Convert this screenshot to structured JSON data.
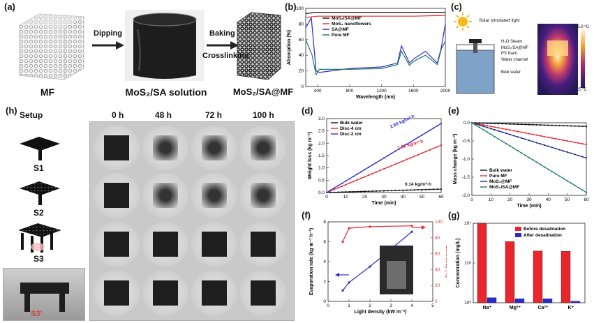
{
  "panel_letters": {
    "a": "(a)",
    "b": "(b)",
    "c": "(c)",
    "d": "(d)",
    "e": "(e)",
    "f": "(f)",
    "g": "(g)",
    "h": "(h)"
  },
  "panel_a": {
    "labels": [
      "MF",
      "MoS₂/SA solution",
      "MoS₂/SA@MF"
    ],
    "arrow1": "Dipping",
    "arrow2_line1": "Baking",
    "arrow2_line2": "Crosslinking"
  },
  "panel_c": {
    "title": "Solar simulated light",
    "labels": [
      "H₂O Steam",
      "MoS₂/SA@MF",
      "PS foam",
      "Water channel",
      "Bulk water"
    ],
    "temp_max": "45.9 ºC",
    "temp_min": "25 ºC"
  },
  "panel_h": {
    "headers": [
      "Setup",
      "0 h",
      "48 h",
      "72 h",
      "100 h"
    ],
    "setups": [
      "S1",
      "S2",
      "S3",
      "S3’"
    ]
  },
  "colors": {
    "red": "#e8262b",
    "blue": "#2b2bd0",
    "teal": "#1a7a6a",
    "dark": "#111111",
    "navy": "#1c2a8a"
  },
  "chart_data": [
    {
      "panel": "b",
      "type": "line",
      "xlabel": "Wavelength (nm)",
      "ylabel": "Absorption (%)",
      "xlim": [
        250,
        2000
      ],
      "ylim": [
        0,
        100
      ],
      "xticks": [
        400,
        800,
        1200,
        1600,
        2000
      ],
      "yticks": [
        0,
        20,
        40,
        60,
        80,
        100
      ],
      "series": [
        {
          "name": "MoS₂/SA@MF",
          "color": "#111111",
          "x": [
            250,
            300,
            400,
            800,
            1200,
            1600,
            2000
          ],
          "y": [
            93,
            94,
            95,
            95,
            95,
            95,
            95
          ]
        },
        {
          "name": "MoS₂ nanoflowers",
          "color": "#e8262b",
          "x": [
            250,
            300,
            400,
            800,
            1200,
            1600,
            2000
          ],
          "y": [
            88,
            89,
            90,
            90,
            90,
            90,
            91
          ]
        },
        {
          "name": "SA@MF",
          "color": "#2b2bd0",
          "x": [
            250,
            320,
            380,
            420,
            800,
            1200,
            1400,
            1450,
            1550,
            1600,
            1750,
            1900,
            1950,
            2000
          ],
          "y": [
            75,
            88,
            20,
            18,
            23,
            25,
            30,
            52,
            30,
            35,
            45,
            30,
            50,
            80
          ]
        },
        {
          "name": "Pure MF",
          "color": "#1a7a6a",
          "x": [
            250,
            330,
            380,
            420,
            800,
            1200,
            1400,
            1450,
            1550,
            1600,
            1750,
            1900,
            1950,
            2000
          ],
          "y": [
            60,
            40,
            15,
            22,
            22,
            23,
            28,
            45,
            27,
            32,
            40,
            28,
            48,
            58
          ]
        }
      ]
    },
    {
      "panel": "d",
      "type": "line",
      "xlabel": "Time (min)",
      "ylabel": "Weight loss (kg m⁻²)",
      "xlim": [
        0,
        60
      ],
      "ylim": [
        0,
        3.0
      ],
      "xticks": [
        0,
        10,
        20,
        30,
        40,
        50,
        60
      ],
      "yticks": [
        0.0,
        0.5,
        1.0,
        1.5,
        2.0,
        2.5,
        3.0
      ],
      "series": [
        {
          "name": "Bulk water",
          "color": "#111111",
          "x": [
            0,
            60
          ],
          "y": [
            0,
            0.14
          ]
        },
        {
          "name": "Disc-4 cm",
          "color": "#e8262b",
          "x": [
            0,
            60
          ],
          "y": [
            0,
            1.92
          ]
        },
        {
          "name": "Disc-2 cm",
          "color": "#2b2bd0",
          "x": [
            0,
            60
          ],
          "y": [
            0,
            2.8
          ]
        }
      ],
      "annotations": [
        {
          "text": "2.80 kg/m²·h",
          "color": "#2b2bd0"
        },
        {
          "text": "1.92 kg/m²·h",
          "color": "#e8262b"
        },
        {
          "text": "0.14 kg/m²·h",
          "color": "#111111"
        }
      ]
    },
    {
      "panel": "e",
      "type": "line",
      "xlabel": "Time (min)",
      "ylabel": "Mass change (kg m⁻²)",
      "xlim": [
        0,
        60
      ],
      "ylim": [
        -2.0,
        0.0
      ],
      "xticks": [
        0,
        10,
        20,
        30,
        40,
        50,
        60
      ],
      "yticks": [
        0.0,
        -0.5,
        -1.0,
        -1.5,
        -2.0
      ],
      "series": [
        {
          "name": "Bulk water",
          "color": "#111111",
          "x": [
            0,
            60
          ],
          "y": [
            0,
            -0.1
          ]
        },
        {
          "name": "Pure MF",
          "color": "#e8262b",
          "x": [
            0,
            60
          ],
          "y": [
            0,
            -0.6
          ]
        },
        {
          "name": "MoS₂@MF",
          "color": "#1c2a8a",
          "x": [
            0,
            60
          ],
          "y": [
            0,
            -0.97
          ]
        },
        {
          "name": "MoS₂/SA@MF",
          "color": "#1a7a6a",
          "x": [
            0,
            60
          ],
          "y": [
            0,
            -1.92
          ]
        }
      ]
    },
    {
      "panel": "f",
      "type": "line",
      "xlabel": "Light density (kW m⁻²)",
      "ylabel_left": "Evaporation rate (kg m⁻² h⁻¹)",
      "ylabel_right": "Efficiency (%)",
      "xlim": [
        0,
        5
      ],
      "ylim_left": [
        0,
        8
      ],
      "ylim_right": [
        0,
        100
      ],
      "xticks": [
        0,
        1,
        2,
        3,
        4,
        5
      ],
      "yticks_left": [
        0,
        2,
        4,
        6,
        8
      ],
      "yticks_right": [
        0,
        20,
        40,
        60,
        80,
        100
      ],
      "series": [
        {
          "name": "Evaporation rate",
          "color": "#2b2bd0",
          "axis": "left",
          "x": [
            0.7,
            1,
            2,
            4
          ],
          "y": [
            1.1,
            1.9,
            3.5,
            7.0
          ]
        },
        {
          "name": "Efficiency",
          "color": "#e8262b",
          "axis": "right",
          "x": [
            0.7,
            1,
            2,
            4
          ],
          "y": [
            75,
            92,
            94,
            95
          ]
        }
      ]
    },
    {
      "panel": "g",
      "type": "bar",
      "ylabel": "Concentration (mg/L)",
      "yscale": "log",
      "ylim": [
        1,
        10000
      ],
      "yticks": [
        "10⁰",
        "10²",
        "10⁴"
      ],
      "categories": [
        "Na⁺",
        "Mg²⁺",
        "Ca²⁺",
        "K⁺"
      ],
      "series": [
        {
          "name": "Before desalination",
          "color": "#e8262b",
          "values": [
            10000,
            1200,
            400,
            390
          ]
        },
        {
          "name": "After desalination",
          "color": "#2b2bd0",
          "values": [
            1.8,
            1.6,
            1.6,
            1.2
          ]
        }
      ]
    }
  ]
}
